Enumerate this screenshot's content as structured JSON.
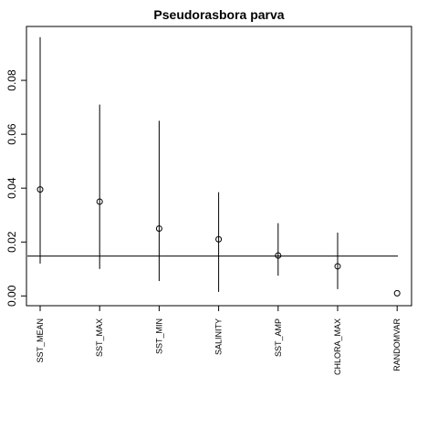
{
  "chart_data": {
    "type": "scatter",
    "title": "Pseudorasbora parva",
    "xlabel": "",
    "ylabel": "",
    "categories": [
      "SST_MEAN",
      "SST_MAX",
      "SST_MIN",
      "SALINITY",
      "SST_AMP",
      "CHLORA_MAX",
      "RANDOMVAR"
    ],
    "values": [
      0.0395,
      0.035,
      0.025,
      0.021,
      0.015,
      0.011,
      0.001
    ],
    "lower": [
      0.012,
      0.01,
      0.0055,
      0.0015,
      0.0075,
      0.0025,
      0.001
    ],
    "upper": [
      0.096,
      0.071,
      0.065,
      0.0385,
      0.027,
      0.0235,
      0.001
    ],
    "reference_line": 0.0148,
    "ylim": [
      0,
      0.1
    ],
    "yticks": [
      0.0,
      0.02,
      0.04,
      0.06,
      0.08
    ],
    "ytick_labels": [
      "0.00",
      "0.02",
      "0.04",
      "0.06",
      "0.08"
    ],
    "grid": false,
    "legend": "none"
  }
}
